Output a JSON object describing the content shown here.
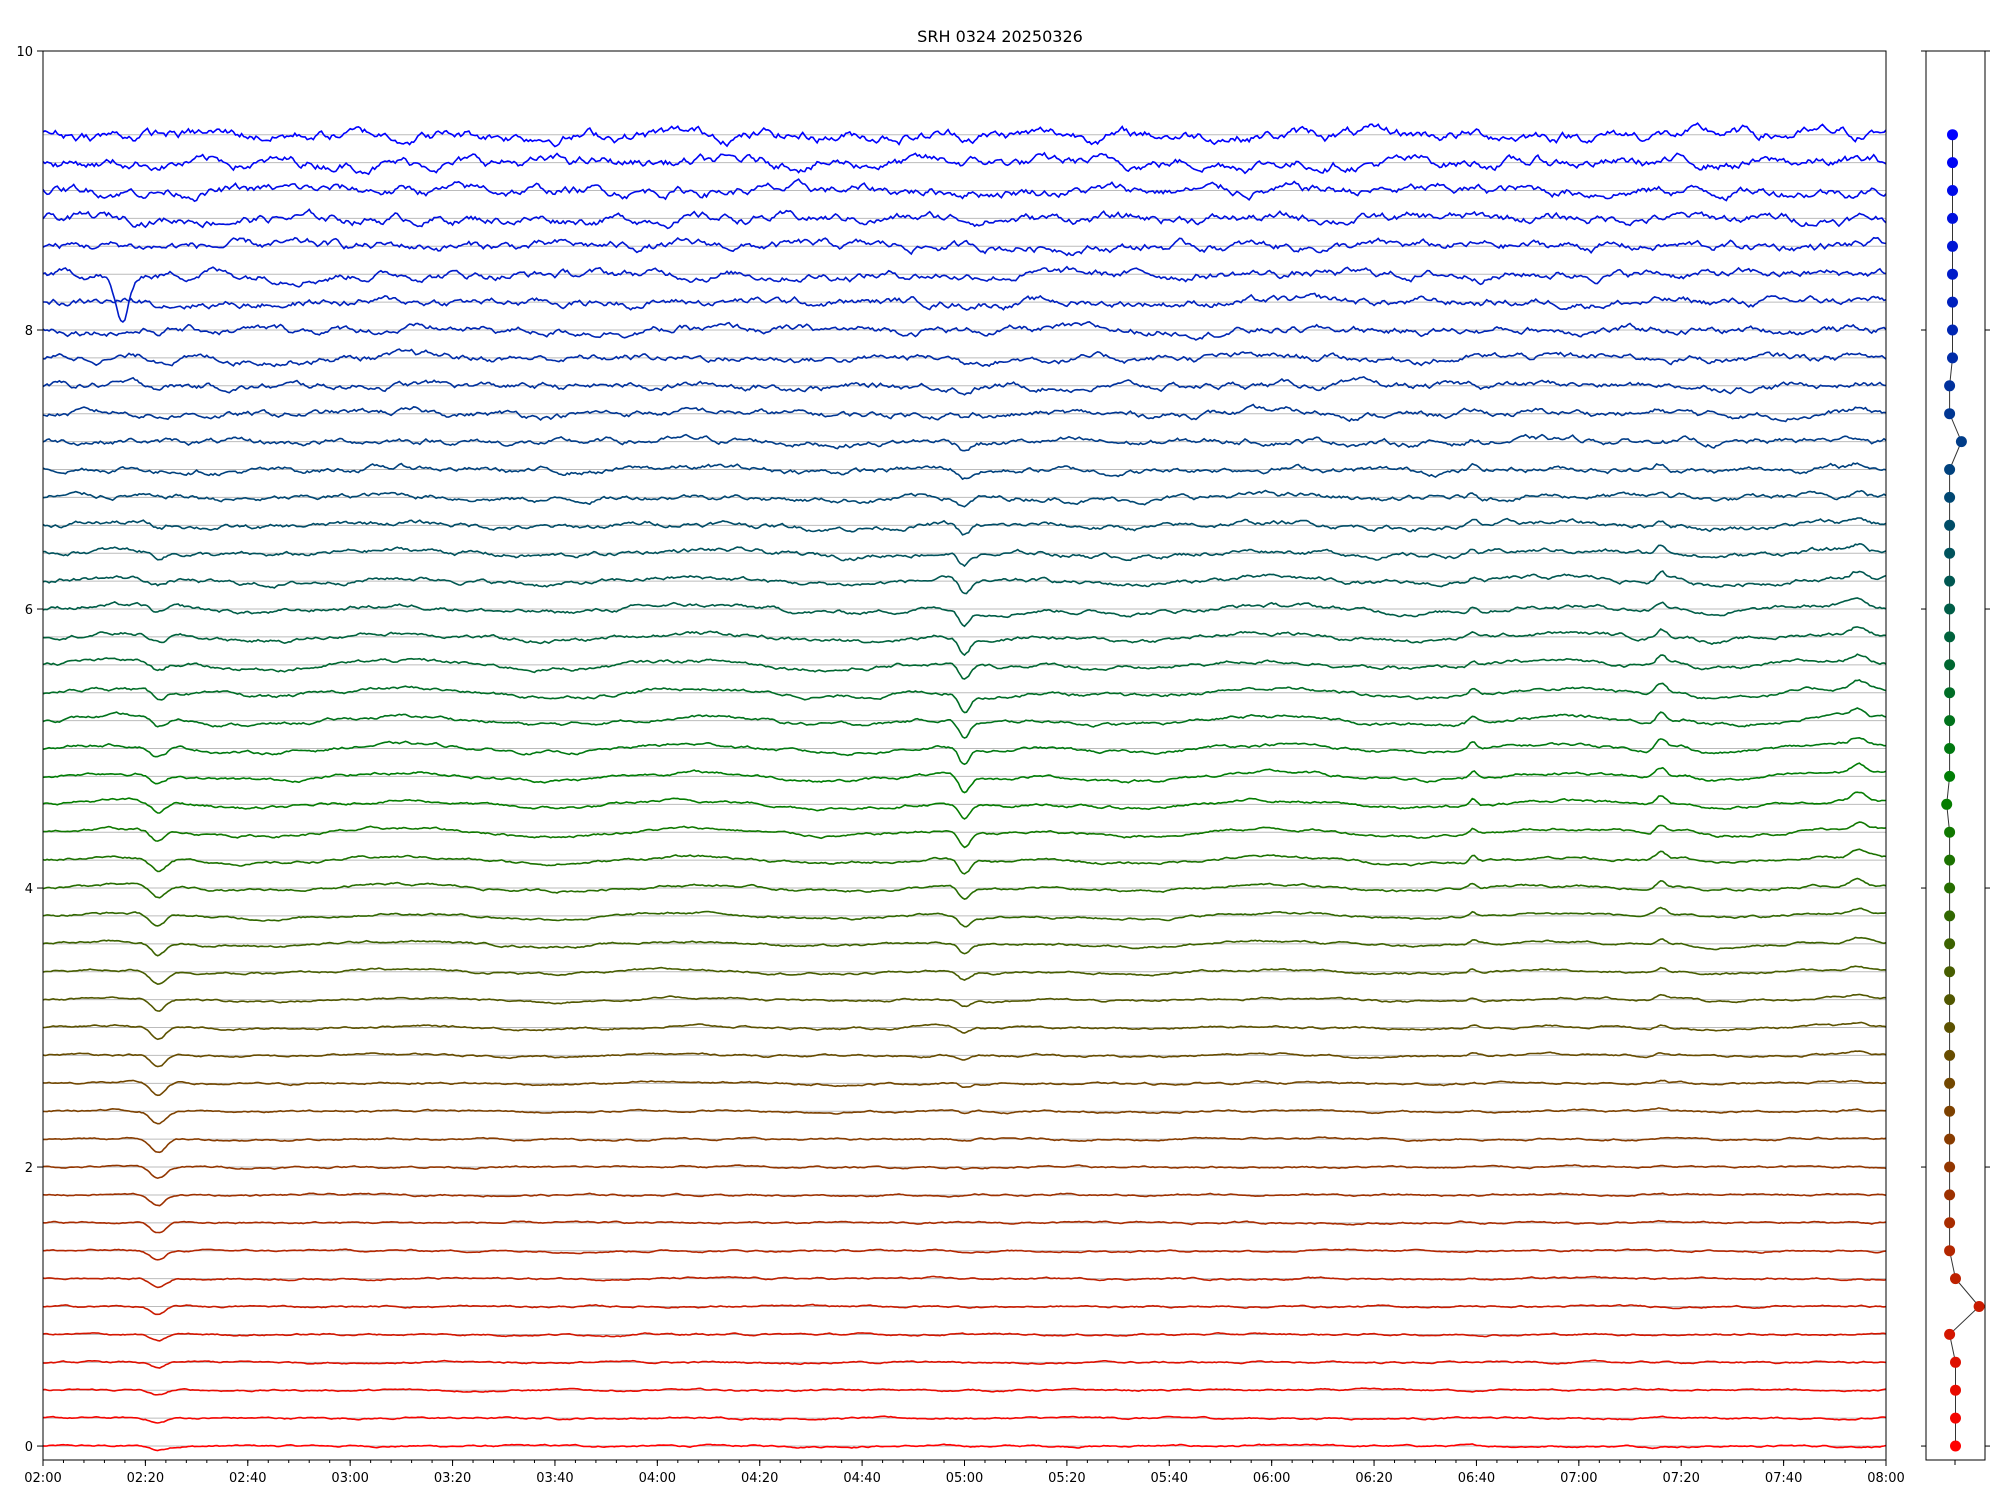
{
  "chart_data": {
    "type": "line",
    "title": "SRH 0324 20250326",
    "xlabel": "",
    "ylabel": "",
    "xlim": [
      "02:00",
      "08:00"
    ],
    "ylim": [
      -0.1,
      10
    ],
    "x_tick_labels": [
      "02:00",
      "02:20",
      "02:40",
      "03:00",
      "03:20",
      "03:40",
      "04:00",
      "04:20",
      "04:40",
      "05:00",
      "05:20",
      "05:40",
      "06:00",
      "06:20",
      "06:40",
      "07:00",
      "07:20",
      "07:40",
      "08:00"
    ],
    "y_tick_labels": [
      "0",
      "2",
      "4",
      "6",
      "8",
      "10"
    ],
    "y_ticks": [
      0,
      2,
      4,
      6,
      8,
      10
    ],
    "grid": "horizontal lines at each trace baseline",
    "series_count": 48,
    "series_baseline_step": 0.2,
    "color_start": "#ff0000",
    "color_mid": "#008000",
    "color_end": "#0000ff",
    "side_panel": {
      "type": "scatter",
      "points_y": [
        0,
        0.2,
        0.4,
        0.6,
        0.8,
        1.0,
        1.2,
        1.4,
        1.6,
        1.8,
        2.0,
        2.2,
        2.4,
        2.6,
        2.8,
        3.0,
        3.2,
        3.4,
        3.6,
        3.8,
        4.0,
        4.2,
        4.4,
        4.6,
        4.8,
        5.0,
        5.2,
        5.4,
        5.6,
        5.8,
        6.0,
        6.2,
        6.4,
        6.6,
        6.8,
        7.0,
        7.2,
        7.4,
        7.6,
        7.8,
        8.0,
        8.2,
        8.4,
        8.6,
        8.8,
        9.0,
        9.2,
        9.4
      ],
      "points_x": [
        0.5,
        0.5,
        0.5,
        0.5,
        0.4,
        0.9,
        0.5,
        0.4,
        0.4,
        0.4,
        0.4,
        0.4,
        0.4,
        0.4,
        0.4,
        0.4,
        0.4,
        0.4,
        0.4,
        0.4,
        0.4,
        0.4,
        0.4,
        0.35,
        0.4,
        0.4,
        0.4,
        0.4,
        0.4,
        0.4,
        0.4,
        0.4,
        0.4,
        0.4,
        0.4,
        0.4,
        0.6,
        0.4,
        0.4,
        0.45,
        0.45,
        0.45,
        0.45,
        0.45,
        0.45,
        0.45,
        0.45,
        0.45
      ]
    }
  }
}
